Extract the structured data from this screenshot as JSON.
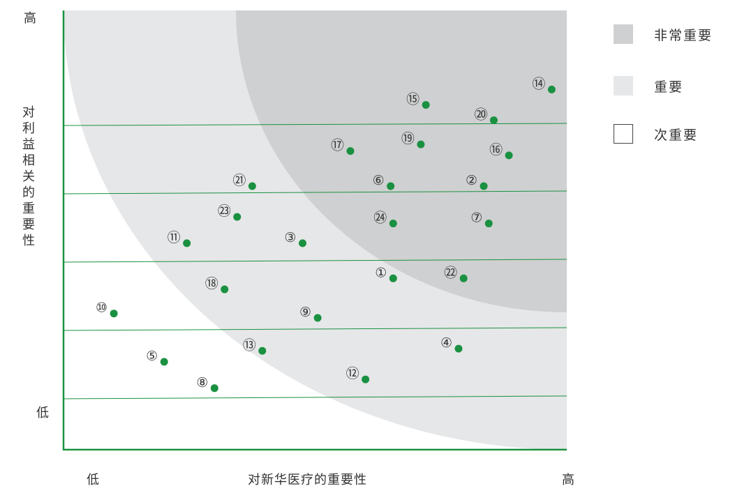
{
  "chart_data": {
    "type": "scatter",
    "xlabel": "对新华医疗的重要性",
    "ylabel": "对利益相关的重要性",
    "x_low": "低",
    "x_high": "高",
    "y_low": "低",
    "y_high": "高",
    "xlim": [
      0,
      100
    ],
    "ylim": [
      0,
      100
    ],
    "zones": [
      {
        "name": "非常重要",
        "color": "#cfd0d1"
      },
      {
        "name": "重要",
        "color": "#e6e7e8"
      },
      {
        "name": "次重要",
        "color": "#ffffff"
      }
    ],
    "point_color": "#1a9141",
    "axis_color": "#1a9141",
    "points": [
      {
        "label": "①",
        "x": 65.5,
        "y": 39
      },
      {
        "label": "②",
        "x": 83.5,
        "y": 60
      },
      {
        "label": "③",
        "x": 47.5,
        "y": 47
      },
      {
        "label": "④",
        "x": 78.5,
        "y": 23
      },
      {
        "label": "⑤",
        "x": 20,
        "y": 20
      },
      {
        "label": "⑥",
        "x": 65,
        "y": 60
      },
      {
        "label": "⑦",
        "x": 84.5,
        "y": 51.5
      },
      {
        "label": "⑧",
        "x": 30,
        "y": 14
      },
      {
        "label": "⑨",
        "x": 50.5,
        "y": 30
      },
      {
        "label": "⑩",
        "x": 10,
        "y": 31
      },
      {
        "label": "⑪",
        "x": 24.5,
        "y": 47
      },
      {
        "label": "⑫",
        "x": 60,
        "y": 16
      },
      {
        "label": "⑬",
        "x": 39.5,
        "y": 22.5
      },
      {
        "label": "⑭",
        "x": 97,
        "y": 82
      },
      {
        "label": "⑮",
        "x": 72,
        "y": 78.5
      },
      {
        "label": "⑯",
        "x": 88.5,
        "y": 67
      },
      {
        "label": "⑰",
        "x": 57,
        "y": 68
      },
      {
        "label": "⑱",
        "x": 32,
        "y": 36.5
      },
      {
        "label": "⑲",
        "x": 71,
        "y": 69.5
      },
      {
        "label": "⑳",
        "x": 85.5,
        "y": 75
      },
      {
        "label": "㉑",
        "x": 37.5,
        "y": 60
      },
      {
        "label": "㉒",
        "x": 79.5,
        "y": 39
      },
      {
        "label": "㉓",
        "x": 34.5,
        "y": 53
      },
      {
        "label": "㉔",
        "x": 65.5,
        "y": 51.5
      }
    ]
  }
}
